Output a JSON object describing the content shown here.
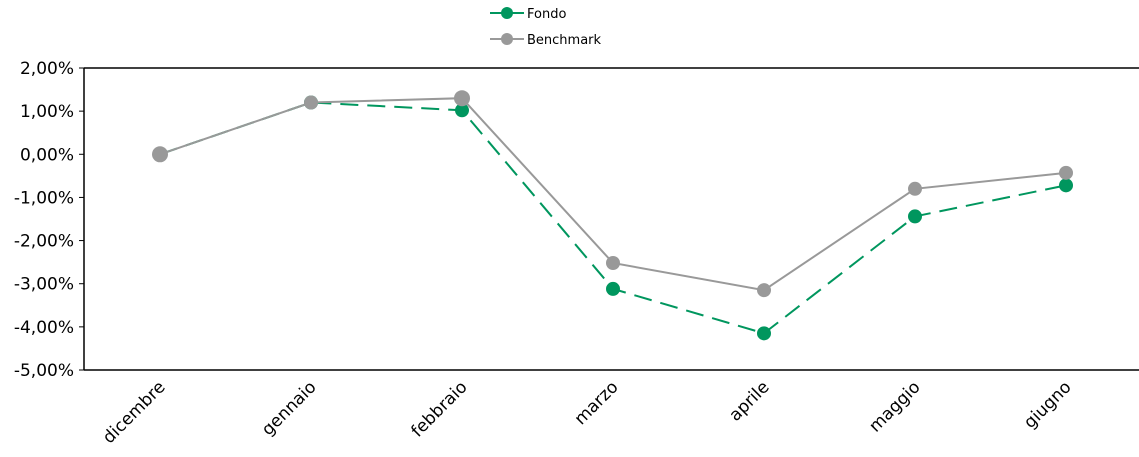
{
  "chart_data": {
    "type": "line",
    "categories": [
      "dicembre",
      "gennaio",
      "febbraio",
      "marzo",
      "aprile",
      "maggio",
      "giugno"
    ],
    "series": [
      {
        "name": "Fondo",
        "values": [
          0.0,
          1.2,
          1.02,
          -3.12,
          -4.15,
          -1.44,
          -0.72
        ],
        "color": "#00965e",
        "dashed": true
      },
      {
        "name": "Benchmark",
        "values": [
          0.0,
          1.2,
          1.3,
          -2.52,
          -3.15,
          -0.8,
          -0.43
        ],
        "color": "#999999",
        "dashed": false
      }
    ],
    "yticks": [
      "2,00%",
      "1,00%",
      "0,00%",
      "-1,00%",
      "-2,00%",
      "-3,00%",
      "-4,00%",
      "-5,00%"
    ],
    "ylim": [
      -5,
      2
    ],
    "legend_position": "top-center",
    "grid": false
  }
}
